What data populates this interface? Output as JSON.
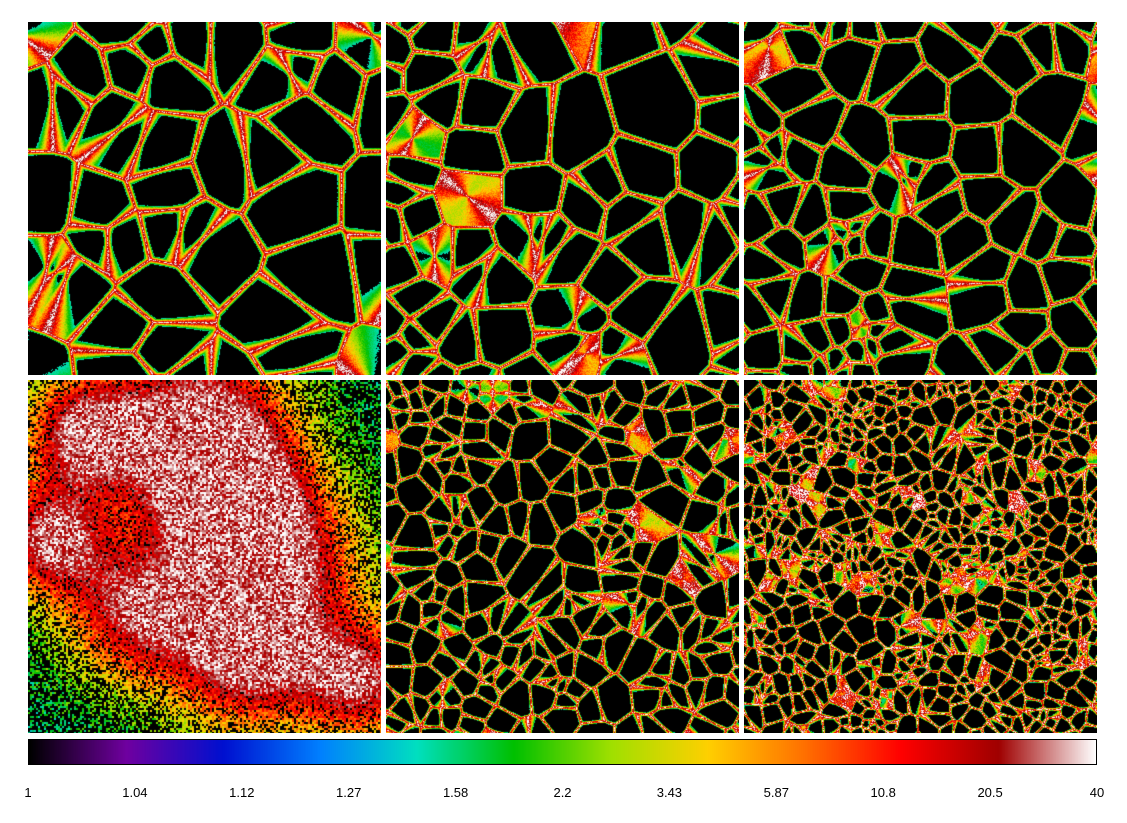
{
  "figure": {
    "panels": [
      {
        "id": "top-left",
        "texture": "filaments-large-voids"
      },
      {
        "id": "top-middle",
        "texture": "filaments-medium-voids"
      },
      {
        "id": "top-right",
        "texture": "filaments-small-voids"
      },
      {
        "id": "bottom-left",
        "texture": "dense-clustered-field"
      },
      {
        "id": "bottom-middle",
        "texture": "fine-cellular-network"
      },
      {
        "id": "bottom-right",
        "texture": "very-fine-noise-network"
      }
    ],
    "colorbar": {
      "scale": "log",
      "min": 1,
      "max": 40,
      "tick_labels": [
        "1",
        "1.04",
        "1.12",
        "1.27",
        "1.58",
        "2.2",
        "3.43",
        "5.87",
        "10.8",
        "20.5",
        "40"
      ],
      "colors": [
        "#000000",
        "#7000a0",
        "#0010d0",
        "#0080ff",
        "#00e0c0",
        "#00c000",
        "#a0e000",
        "#ffd000",
        "#ff7000",
        "#ff0000",
        "#a00000",
        "#ffffff"
      ]
    }
  }
}
